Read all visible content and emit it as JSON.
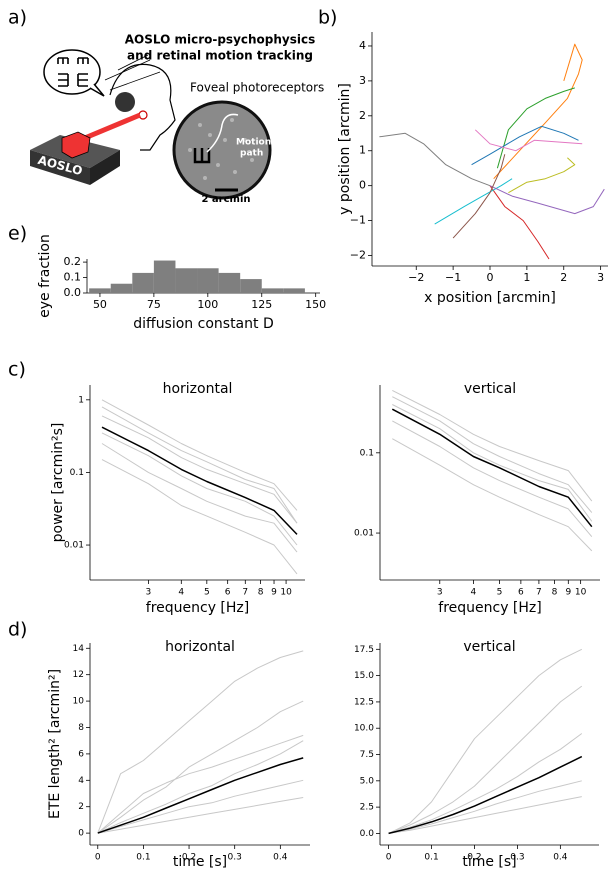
{
  "panel_labels": [
    "a)",
    "b)",
    "c)",
    "d)",
    "e)"
  ],
  "illustration": {
    "title_line1": "AOSLO micro-psychophysics",
    "title_line2": "and retinal motion tracking",
    "foveal": "Foveal photoreceptors",
    "device": "AOSLO",
    "motion_line1": "Motion",
    "motion_line2": "path",
    "scale": "2 arcmin"
  },
  "chart_data": [
    {
      "type": "trajectory",
      "xlabel": "x position [arcmin]",
      "ylabel": "y position [arcmin]",
      "xlim": [
        -3.2,
        3.2
      ],
      "ylim": [
        -2.3,
        4.4
      ],
      "xticks": [
        {
          "value": -2,
          "label": "−2"
        },
        {
          "value": -1,
          "label": "−1"
        },
        0,
        1,
        2,
        3
      ],
      "yticks": [
        {
          "value": -2,
          "label": "−2"
        },
        {
          "value": -1,
          "label": "−1"
        },
        0,
        1,
        2,
        3,
        4
      ],
      "series": [
        {
          "color": "#7f7f7f",
          "x": [
            -3,
            -2.3,
            -1.8,
            -1.2,
            -0.5,
            0
          ],
          "values": [
            1.4,
            1.5,
            1.2,
            0.6,
            0.2,
            0
          ]
        },
        {
          "color": "#ff7f0e",
          "x": [
            0.1,
            0.8,
            1.5,
            2.1,
            2.4,
            2.5,
            2.3,
            2.0
          ],
          "values": [
            0.2,
            1.0,
            1.8,
            2.5,
            3.2,
            3.6,
            4.05,
            3.0
          ]
        },
        {
          "color": "#2ca02c",
          "x": [
            0.2,
            0.5,
            1.0,
            1.5,
            2.0,
            2.3
          ],
          "values": [
            0.5,
            1.6,
            2.2,
            2.5,
            2.7,
            2.8
          ]
        },
        {
          "color": "#1f77b4",
          "x": [
            -0.5,
            0,
            0.8,
            1.4,
            2.0,
            2.4
          ],
          "values": [
            0.6,
            0.9,
            1.4,
            1.7,
            1.5,
            1.3
          ]
        },
        {
          "color": "#d62728",
          "x": [
            0,
            0.4,
            0.9,
            1.3,
            1.6
          ],
          "values": [
            0,
            -0.6,
            -1.0,
            -1.6,
            -2.1
          ]
        },
        {
          "color": "#17becf",
          "x": [
            -1.5,
            -0.7,
            -0.2,
            0.3,
            0.6
          ],
          "values": [
            -1.1,
            -0.6,
            -0.3,
            0,
            0.2
          ]
        },
        {
          "color": "#e377c2",
          "x": [
            -0.4,
            0,
            0.7,
            1.2,
            2.5
          ],
          "values": [
            1.6,
            1.2,
            1.0,
            1.3,
            1.2
          ]
        },
        {
          "color": "#9467bd",
          "x": [
            0,
            0.6,
            1.3,
            2.3,
            2.8,
            3.1
          ],
          "values": [
            0,
            -0.3,
            -0.5,
            -0.8,
            -0.6,
            -0.1
          ]
        },
        {
          "color": "#bcbd22",
          "x": [
            0.5,
            1.0,
            1.5,
            2.0,
            2.3,
            2.1
          ],
          "values": [
            -0.2,
            0.1,
            0.2,
            0.4,
            0.6,
            0.8
          ]
        },
        {
          "color": "#8c564b",
          "x": [
            -1.0,
            -0.4,
            0,
            0.3,
            0.4
          ],
          "values": [
            -1.5,
            -0.8,
            -0.2,
            0.5,
            0.9
          ]
        }
      ]
    },
    {
      "type": "histogram",
      "xlabel": "diffusion constant D",
      "ylabel": "eye fraction",
      "color": "#7f7f7f",
      "bins": [
        45,
        55,
        65,
        75,
        85,
        95,
        105,
        115,
        125,
        135,
        145
      ],
      "values": [
        0.03,
        0.06,
        0.13,
        0.21,
        0.16,
        0.16,
        0.13,
        0.09,
        0.03,
        0.03
      ],
      "xlim": [
        44,
        152
      ],
      "ylim": [
        0,
        0.22
      ],
      "xticks": [
        50,
        75,
        100,
        125,
        150
      ],
      "yticks": [
        {
          "value": 0,
          "label": "0.0"
        },
        0.1,
        0.2
      ]
    },
    {
      "type": "line",
      "title": "horizontal",
      "xlabel": "frequency [Hz]",
      "ylabel": "power [arcmin²s]",
      "xscale": "log",
      "yscale": "log",
      "xlim": [
        1.8,
        11.8
      ],
      "ylim": [
        0.0033,
        1.6
      ],
      "xticks": [
        3,
        4,
        5,
        6,
        7,
        8,
        9,
        10
      ],
      "yticks": [
        0.01,
        0.1,
        1
      ],
      "x": [
        2,
        3,
        4,
        5,
        7,
        9,
        11
      ],
      "series": [
        {
          "color": "#c8c8c8",
          "values": [
            1.0,
            0.45,
            0.25,
            0.17,
            0.1,
            0.07,
            0.03
          ]
        },
        {
          "color": "#c8c8c8",
          "values": [
            0.8,
            0.35,
            0.2,
            0.14,
            0.08,
            0.06,
            0.02
          ]
        },
        {
          "color": "#c8c8c8",
          "values": [
            0.6,
            0.3,
            0.16,
            0.11,
            0.07,
            0.05,
            0.02
          ]
        },
        {
          "color": "#c8c8c8",
          "values": [
            0.35,
            0.17,
            0.09,
            0.06,
            0.04,
            0.025,
            0.01
          ]
        },
        {
          "color": "#c8c8c8",
          "values": [
            0.25,
            0.1,
            0.06,
            0.04,
            0.025,
            0.02,
            0.008
          ]
        },
        {
          "color": "#c8c8c8",
          "values": [
            0.15,
            0.07,
            0.035,
            0.025,
            0.015,
            0.01,
            0.004
          ]
        },
        {
          "color": "#000000",
          "values": [
            0.42,
            0.2,
            0.11,
            0.075,
            0.045,
            0.03,
            0.014
          ]
        }
      ]
    },
    {
      "type": "line",
      "title": "vertical",
      "xlabel": "frequency [Hz]",
      "xscale": "log",
      "yscale": "log",
      "xlim": [
        1.8,
        11.8
      ],
      "ylim": [
        0.0026,
        0.7
      ],
      "xticks": [
        3,
        4,
        5,
        6,
        7,
        8,
        9,
        10
      ],
      "yticks": [
        0.01,
        0.1
      ],
      "x": [
        2,
        3,
        4,
        5,
        7,
        9,
        11
      ],
      "series": [
        {
          "color": "#c8c8c8",
          "values": [
            0.6,
            0.3,
            0.17,
            0.12,
            0.08,
            0.06,
            0.025
          ]
        },
        {
          "color": "#c8c8c8",
          "values": [
            0.5,
            0.25,
            0.13,
            0.09,
            0.055,
            0.04,
            0.018
          ]
        },
        {
          "color": "#c8c8c8",
          "values": [
            0.4,
            0.2,
            0.1,
            0.07,
            0.045,
            0.035,
            0.014
          ]
        },
        {
          "color": "#c8c8c8",
          "values": [
            0.25,
            0.12,
            0.065,
            0.045,
            0.028,
            0.02,
            0.009
          ]
        },
        {
          "color": "#c8c8c8",
          "values": [
            0.15,
            0.07,
            0.04,
            0.028,
            0.017,
            0.012,
            0.006
          ]
        },
        {
          "color": "#000000",
          "values": [
            0.35,
            0.17,
            0.09,
            0.065,
            0.038,
            0.028,
            0.012
          ]
        }
      ]
    },
    {
      "type": "line",
      "title": "horizontal",
      "xlabel": "time [s]",
      "ylabel": "ETE length² [arcmin²]",
      "xlim": [
        -0.017,
        0.465
      ],
      "ylim": [
        -0.9,
        14.4
      ],
      "xticks": [
        0,
        0.1,
        0.2,
        0.3,
        0.4
      ],
      "yticks": [
        0,
        2,
        4,
        6,
        8,
        10,
        12,
        14
      ],
      "x": [
        0,
        0.05,
        0.1,
        0.15,
        0.2,
        0.25,
        0.3,
        0.35,
        0.4,
        0.45
      ],
      "series": [
        {
          "color": "#c8c8c8",
          "values": [
            0,
            4.5,
            5.5,
            7,
            8.5,
            10,
            11.5,
            12.5,
            13.3,
            13.8
          ]
        },
        {
          "color": "#c8c8c8",
          "values": [
            0,
            1.2,
            2.5,
            3.5,
            5,
            6,
            7,
            8,
            9.2,
            10
          ]
        },
        {
          "color": "#c8c8c8",
          "values": [
            0,
            0.8,
            1.5,
            2.2,
            3,
            3.6,
            4.5,
            5.2,
            6,
            7
          ]
        },
        {
          "color": "#c8c8c8",
          "values": [
            0,
            0.5,
            1,
            1.5,
            2,
            2.3,
            2.8,
            3.2,
            3.6,
            4
          ]
        },
        {
          "color": "#c8c8c8",
          "values": [
            0,
            0.3,
            0.6,
            0.9,
            1.2,
            1.5,
            1.8,
            2.1,
            2.4,
            2.7
          ]
        },
        {
          "color": "#c8c8c8",
          "values": [
            0,
            1.5,
            3,
            3.8,
            4.5,
            5,
            5.6,
            6.2,
            6.8,
            7.4
          ]
        },
        {
          "color": "#000000",
          "values": [
            0,
            0.6,
            1.2,
            1.9,
            2.6,
            3.3,
            4.0,
            4.6,
            5.2,
            5.7
          ]
        }
      ]
    },
    {
      "type": "line",
      "title": "vertical",
      "xlabel": "time [s]",
      "xlim": [
        -0.02,
        0.49
      ],
      "ylim": [
        -1.1,
        18.1
      ],
      "xticks": [
        0,
        0.1,
        0.2,
        0.3,
        0.4
      ],
      "yticks": [
        {
          "value": 0,
          "label": "0.0"
        },
        2.5,
        {
          "value": 5,
          "label": "5.0"
        },
        7.5,
        {
          "value": 10,
          "label": "10.0"
        },
        12.5,
        {
          "value": 15,
          "label": "15.0"
        },
        17.5
      ],
      "x": [
        0,
        0.05,
        0.1,
        0.15,
        0.2,
        0.25,
        0.3,
        0.35,
        0.4,
        0.45
      ],
      "series": [
        {
          "color": "#c8c8c8",
          "values": [
            0,
            1,
            3,
            6,
            9,
            11,
            13,
            15,
            16.5,
            17.5
          ]
        },
        {
          "color": "#c8c8c8",
          "values": [
            0,
            0.8,
            1.8,
            3,
            4.5,
            6.5,
            8.5,
            10.5,
            12.5,
            14
          ]
        },
        {
          "color": "#c8c8c8",
          "values": [
            0,
            0.6,
            1.3,
            2.2,
            3.2,
            4.2,
            5.4,
            6.8,
            8,
            9.5
          ]
        },
        {
          "color": "#c8c8c8",
          "values": [
            0,
            0.4,
            0.9,
            1.5,
            2.1,
            2.8,
            3.4,
            4,
            4.5,
            5
          ]
        },
        {
          "color": "#c8c8c8",
          "values": [
            0,
            0.3,
            0.7,
            1.1,
            1.5,
            1.9,
            2.3,
            2.7,
            3.1,
            3.5
          ]
        },
        {
          "color": "#000000",
          "values": [
            0,
            0.5,
            1.1,
            1.8,
            2.6,
            3.5,
            4.4,
            5.3,
            6.3,
            7.3
          ]
        }
      ]
    }
  ]
}
